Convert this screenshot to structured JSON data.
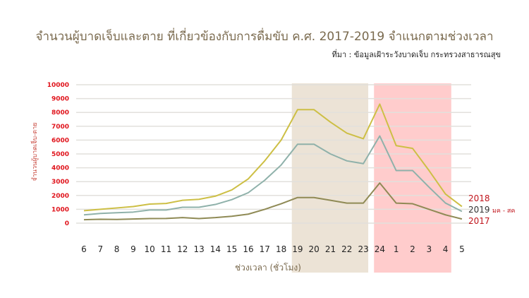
{
  "chart_data": {
    "type": "line",
    "title": "จำนวนผู้บาดเจ็บและตาย ที่เกี่ยวข้องกับการดื่มขับ ค.ศ. 2017-2019 จำแนกตามช่วงเวลา",
    "source": "ที่มา : ข้อมูลเฝ้าระวังบาดเจ็บ กระทรวงสาธารณสุข",
    "xlabel": "ช่วงเวลา (ชั่วโมง)",
    "ylabel": "จำนวนผู้บาดเจ็บ-ตาย",
    "ylim": [
      0,
      10000
    ],
    "yticks": [
      "0",
      "1000",
      "2000",
      "3000",
      "4000",
      "5000",
      "6000",
      "7000",
      "8000",
      "9000",
      "10000"
    ],
    "grid": true,
    "x": [
      "6",
      "7",
      "8",
      "9",
      "10",
      "11",
      "12",
      "13",
      "14",
      "15",
      "16",
      "17",
      "18",
      "19",
      "20",
      "21",
      "22",
      "23",
      "24",
      "1",
      "2",
      "3",
      "4",
      "5"
    ],
    "shaded_ranges": [
      {
        "from": "19",
        "to": "23",
        "color": "#ece3d6"
      },
      {
        "from": "24",
        "to": "4",
        "color": "#ffcccc"
      }
    ],
    "series": [
      {
        "name": "2018",
        "suffix": "",
        "color": "#cdbf45",
        "label_color": "#c0141c",
        "values": [
          900,
          1000,
          1100,
          1200,
          1380,
          1420,
          1650,
          1720,
          1950,
          2400,
          3200,
          4500,
          6000,
          8200,
          8200,
          7300,
          6500,
          6100,
          8600,
          5600,
          5400,
          3800,
          2100,
          1200
        ]
      },
      {
        "name": "2019",
        "suffix": "มค - สค",
        "color": "#8fb1aa",
        "label_color": "#333333",
        "values": [
          600,
          700,
          750,
          800,
          950,
          950,
          1150,
          1150,
          1350,
          1700,
          2200,
          3100,
          4200,
          5700,
          5700,
          5000,
          4500,
          4300,
          6300,
          3800,
          3800,
          2600,
          1450,
          850
        ]
      },
      {
        "name": "2017",
        "suffix": "",
        "color": "#8f8a55",
        "label_color": "#c0141c",
        "values": [
          250,
          280,
          270,
          300,
          330,
          340,
          400,
          330,
          400,
          500,
          650,
          1000,
          1400,
          1850,
          1850,
          1650,
          1450,
          1450,
          2900,
          1450,
          1400,
          1000,
          600,
          300
        ]
      }
    ]
  }
}
